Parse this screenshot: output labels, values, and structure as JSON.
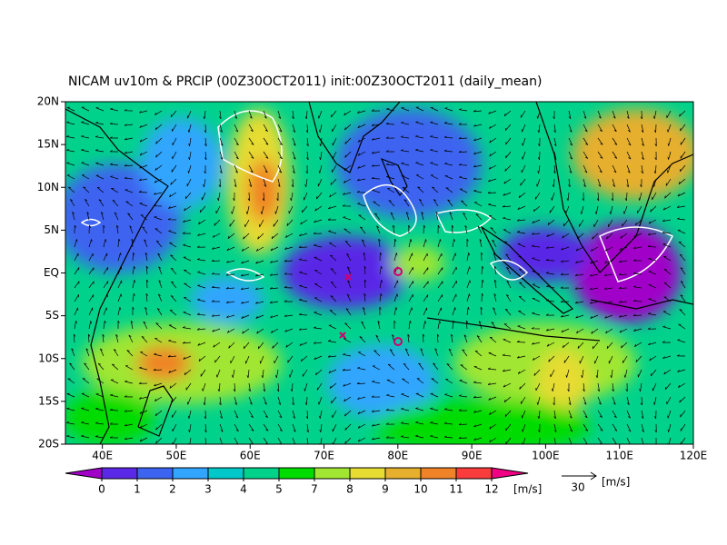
{
  "title": "NICAM uv10m & PRCIP (00Z30OCT2011) init:00Z30OCT2011 (daily_mean)",
  "map": {
    "lon_range": [
      35,
      120
    ],
    "lat_range": [
      -20,
      20
    ],
    "lat_ticks": [
      {
        "value": 20,
        "label": "20N"
      },
      {
        "value": 15,
        "label": "15N"
      },
      {
        "value": 10,
        "label": "10N"
      },
      {
        "value": 5,
        "label": "5N"
      },
      {
        "value": 0,
        "label": "EQ"
      },
      {
        "value": -5,
        "label": "5S"
      },
      {
        "value": -10,
        "label": "10S"
      },
      {
        "value": -15,
        "label": "15S"
      },
      {
        "value": -20,
        "label": "20S"
      }
    ],
    "lon_ticks": [
      {
        "value": 40,
        "label": "40E"
      },
      {
        "value": 50,
        "label": "50E"
      },
      {
        "value": 60,
        "label": "60E"
      },
      {
        "value": 70,
        "label": "70E"
      },
      {
        "value": 80,
        "label": "80E"
      },
      {
        "value": 90,
        "label": "90E"
      },
      {
        "value": 100,
        "label": "100E"
      },
      {
        "value": 110,
        "label": "110E"
      },
      {
        "value": 120,
        "label": "120E"
      }
    ]
  },
  "colorbar": {
    "levels": [
      0,
      1,
      2,
      3,
      4,
      5,
      7,
      8,
      9,
      10,
      11,
      12
    ],
    "colors": [
      "#a000c8",
      "#5a28e6",
      "#3c64f0",
      "#32a5ff",
      "#00c8c8",
      "#00d28c",
      "#00dc00",
      "#a0e632",
      "#e6dc32",
      "#e6af2d",
      "#f08228",
      "#fa3c3c",
      "#f00082"
    ],
    "unit": "[m/s]"
  },
  "vector_scale": {
    "value": 30,
    "unit": "[m/s]"
  }
}
